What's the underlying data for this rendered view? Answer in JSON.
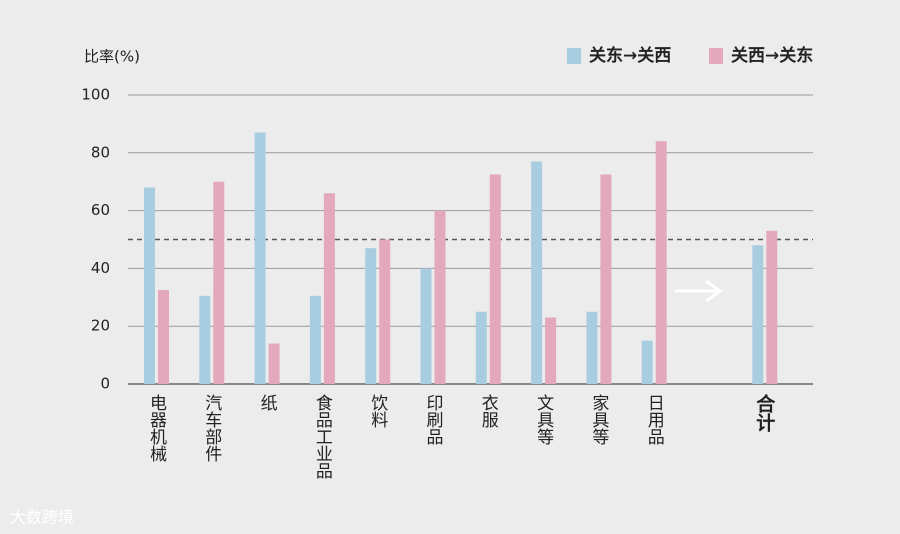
{
  "chart_data": {
    "type": "bar",
    "y_label": "比率(%)",
    "categories": [
      "电器机械",
      "汽车部件",
      "纸",
      "食品工业品",
      "饮料",
      "印刷品",
      "衣服",
      "文具等",
      "家具等",
      "日用品",
      null,
      "合计"
    ],
    "series": [
      {
        "name": "关东→关西",
        "color": "#a9cde0",
        "values": [
          68,
          30.5,
          87,
          30.5,
          47,
          40,
          25,
          77,
          25,
          15,
          null,
          48
        ]
      },
      {
        "name": "关西→关东",
        "color": "#e4a8bc",
        "values": [
          32.5,
          70,
          14,
          66,
          50,
          60,
          72.5,
          23,
          72.5,
          84,
          null,
          53
        ]
      }
    ],
    "ylim": [
      0,
      100
    ],
    "yticks": [
      0,
      20,
      40,
      60,
      80,
      100
    ],
    "grid": true,
    "reference_line": 50,
    "legend": "top-right"
  },
  "watermark": "大数跨境"
}
